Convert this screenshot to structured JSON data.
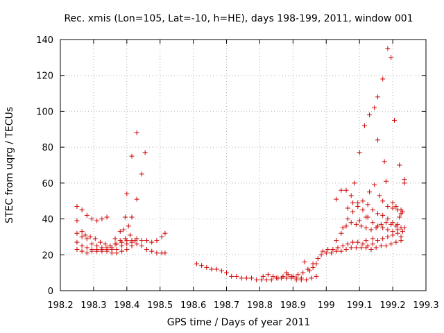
{
  "chart_data": {
    "type": "scatter",
    "title": "Rec. xmis (Lon=105, Lat=-10, h=HE), days 198-199, 2011, window 001",
    "xlabel": "GPS time / Days of year 2011",
    "ylabel": "STEC from uqrg / TECUs",
    "xlim": [
      198.2,
      199.3
    ],
    "ylim": [
      0,
      140
    ],
    "xticks": [
      "198.2",
      "198.3",
      "198.4",
      "198.5",
      "198.6",
      "198.7",
      "198.8",
      "198.9",
      "199",
      "199.1",
      "199.2",
      "199.3"
    ],
    "yticks": [
      "0",
      "20",
      "40",
      "60",
      "80",
      "100",
      "120",
      "140"
    ],
    "marker_color": "#cc0000",
    "series": [
      {
        "name": "STEC",
        "points": [
          [
            198.25,
            47
          ],
          [
            198.265,
            45
          ],
          [
            198.28,
            42
          ],
          [
            198.295,
            40
          ],
          [
            198.31,
            39
          ],
          [
            198.325,
            40
          ],
          [
            198.34,
            41
          ],
          [
            198.25,
            39
          ],
          [
            198.265,
            33
          ],
          [
            198.275,
            31
          ],
          [
            198.29,
            30
          ],
          [
            198.305,
            29
          ],
          [
            198.32,
            27
          ],
          [
            198.335,
            26
          ],
          [
            198.35,
            25
          ],
          [
            198.365,
            26
          ],
          [
            198.38,
            28
          ],
          [
            198.395,
            29
          ],
          [
            198.41,
            31
          ],
          [
            198.425,
            28
          ],
          [
            198.25,
            32
          ],
          [
            198.265,
            30
          ],
          [
            198.28,
            29
          ],
          [
            198.295,
            26
          ],
          [
            198.31,
            25
          ],
          [
            198.325,
            24
          ],
          [
            198.34,
            24
          ],
          [
            198.355,
            23
          ],
          [
            198.37,
            23
          ],
          [
            198.385,
            25
          ],
          [
            198.4,
            26
          ],
          [
            198.415,
            28
          ],
          [
            198.43,
            29
          ],
          [
            198.445,
            28
          ],
          [
            198.46,
            28
          ],
          [
            198.475,
            27
          ],
          [
            198.49,
            28
          ],
          [
            198.505,
            30
          ],
          [
            198.515,
            32
          ],
          [
            198.25,
            27
          ],
          [
            198.265,
            25
          ],
          [
            198.28,
            24
          ],
          [
            198.295,
            23
          ],
          [
            198.31,
            23
          ],
          [
            198.325,
            22
          ],
          [
            198.34,
            22
          ],
          [
            198.355,
            21
          ],
          [
            198.37,
            21
          ],
          [
            198.385,
            22
          ],
          [
            198.4,
            23
          ],
          [
            198.415,
            25
          ],
          [
            198.43,
            26
          ],
          [
            198.445,
            25
          ],
          [
            198.46,
            23
          ],
          [
            198.475,
            22
          ],
          [
            198.49,
            21
          ],
          [
            198.505,
            21
          ],
          [
            198.515,
            21
          ],
          [
            198.25,
            23
          ],
          [
            198.265,
            22
          ],
          [
            198.28,
            21
          ],
          [
            198.295,
            22
          ],
          [
            198.31,
            22
          ],
          [
            198.325,
            23
          ],
          [
            198.34,
            23
          ],
          [
            198.355,
            24
          ],
          [
            198.37,
            26
          ],
          [
            198.385,
            27
          ],
          [
            198.4,
            28
          ],
          [
            198.415,
            27
          ],
          [
            198.39,
            34
          ],
          [
            198.405,
            36
          ],
          [
            198.395,
            41
          ],
          [
            198.4,
            54
          ],
          [
            198.415,
            41
          ],
          [
            198.415,
            75
          ],
          [
            198.43,
            88
          ],
          [
            198.43,
            51
          ],
          [
            198.445,
            65
          ],
          [
            198.455,
            77
          ],
          [
            198.365,
            29
          ],
          [
            198.38,
            33
          ],
          [
            198.61,
            15
          ],
          [
            198.625,
            14
          ],
          [
            198.64,
            13
          ],
          [
            198.655,
            12
          ],
          [
            198.67,
            12
          ],
          [
            198.685,
            11
          ],
          [
            198.7,
            10
          ],
          [
            198.715,
            8
          ],
          [
            198.73,
            8
          ],
          [
            198.745,
            7
          ],
          [
            198.76,
            7
          ],
          [
            198.775,
            7
          ],
          [
            198.79,
            6
          ],
          [
            198.805,
            6
          ],
          [
            198.82,
            6
          ],
          [
            198.835,
            6
          ],
          [
            198.85,
            7
          ],
          [
            198.865,
            7
          ],
          [
            198.88,
            7
          ],
          [
            198.895,
            7
          ],
          [
            198.91,
            6
          ],
          [
            198.925,
            6
          ],
          [
            198.94,
            6
          ],
          [
            198.955,
            7
          ],
          [
            198.97,
            8
          ],
          [
            198.81,
            8
          ],
          [
            198.825,
            9
          ],
          [
            198.84,
            8
          ],
          [
            198.855,
            7
          ],
          [
            198.87,
            8
          ],
          [
            198.885,
            9
          ],
          [
            198.9,
            8
          ],
          [
            198.915,
            9
          ],
          [
            198.93,
            10
          ],
          [
            198.945,
            12
          ],
          [
            198.96,
            15
          ],
          [
            198.975,
            18
          ],
          [
            198.88,
            10
          ],
          [
            198.895,
            8
          ],
          [
            198.91,
            7
          ],
          [
            198.925,
            7
          ],
          [
            198.935,
            16
          ],
          [
            198.95,
            11
          ],
          [
            198.96,
            13
          ],
          [
            198.97,
            15
          ],
          [
            198.985,
            20
          ],
          [
            199.0,
            21
          ],
          [
            199.015,
            21
          ],
          [
            199.03,
            22
          ],
          [
            199.045,
            22
          ],
          [
            199.06,
            23
          ],
          [
            199.075,
            24
          ],
          [
            199.09,
            24
          ],
          [
            199.105,
            24
          ],
          [
            199.12,
            24
          ],
          [
            199.135,
            23
          ],
          [
            199.15,
            24
          ],
          [
            199.165,
            25
          ],
          [
            199.18,
            25
          ],
          [
            199.195,
            26
          ],
          [
            199.21,
            27
          ],
          [
            199.225,
            28
          ],
          [
            198.99,
            22
          ],
          [
            199.005,
            23
          ],
          [
            199.02,
            23
          ],
          [
            199.035,
            24
          ],
          [
            199.05,
            25
          ],
          [
            199.065,
            26
          ],
          [
            199.08,
            27
          ],
          [
            199.095,
            27
          ],
          [
            199.11,
            26
          ],
          [
            199.125,
            25
          ],
          [
            199.14,
            26
          ],
          [
            199.155,
            28
          ],
          [
            199.17,
            29
          ],
          [
            199.185,
            30
          ],
          [
            199.2,
            31
          ],
          [
            199.215,
            32
          ],
          [
            199.23,
            33
          ],
          [
            199.03,
            28
          ],
          [
            199.045,
            32
          ],
          [
            199.06,
            36
          ],
          [
            199.075,
            38
          ],
          [
            199.09,
            37
          ],
          [
            199.105,
            36
          ],
          [
            199.12,
            35
          ],
          [
            199.135,
            34
          ],
          [
            199.15,
            35
          ],
          [
            199.165,
            37
          ],
          [
            199.18,
            38
          ],
          [
            199.195,
            37
          ],
          [
            199.21,
            36
          ],
          [
            199.225,
            35
          ],
          [
            199.235,
            35
          ],
          [
            199.05,
            35
          ],
          [
            199.065,
            40
          ],
          [
            199.08,
            44
          ],
          [
            199.095,
            47
          ],
          [
            199.11,
            50
          ],
          [
            199.125,
            48
          ],
          [
            199.14,
            45
          ],
          [
            199.155,
            43
          ],
          [
            199.17,
            42
          ],
          [
            199.185,
            40
          ],
          [
            199.2,
            38
          ],
          [
            199.215,
            37
          ],
          [
            199.23,
            44
          ],
          [
            199.065,
            46
          ],
          [
            199.08,
            49
          ],
          [
            199.095,
            49
          ],
          [
            199.11,
            45
          ],
          [
            199.125,
            41
          ],
          [
            199.14,
            38
          ],
          [
            199.155,
            36
          ],
          [
            199.17,
            35
          ],
          [
            199.185,
            34
          ],
          [
            199.2,
            33
          ],
          [
            199.215,
            34
          ],
          [
            199.225,
            30
          ],
          [
            199.03,
            51
          ],
          [
            199.045,
            56
          ],
          [
            199.06,
            56
          ],
          [
            199.075,
            53
          ],
          [
            199.085,
            60
          ],
          [
            199.1,
            77
          ],
          [
            199.115,
            92
          ],
          [
            199.13,
            98
          ],
          [
            199.145,
            102
          ],
          [
            199.155,
            108
          ],
          [
            199.155,
            84
          ],
          [
            199.17,
            118
          ],
          [
            199.175,
            72
          ],
          [
            199.185,
            135
          ],
          [
            199.195,
            130
          ],
          [
            199.205,
            95
          ],
          [
            199.22,
            70
          ],
          [
            199.235,
            62
          ],
          [
            199.235,
            60
          ],
          [
            199.18,
            61
          ],
          [
            199.2,
            49
          ],
          [
            199.215,
            45
          ],
          [
            199.225,
            43
          ],
          [
            199.13,
            55
          ],
          [
            199.145,
            59
          ],
          [
            199.16,
            53
          ],
          [
            199.17,
            50
          ],
          [
            199.185,
            47
          ],
          [
            199.2,
            46
          ],
          [
            199.225,
            45
          ],
          [
            199.1,
            39
          ],
          [
            199.12,
            41
          ],
          [
            199.14,
            29
          ],
          [
            199.12,
            28
          ],
          [
            199.21,
            47
          ],
          [
            199.22,
            41
          ]
        ]
      }
    ]
  }
}
